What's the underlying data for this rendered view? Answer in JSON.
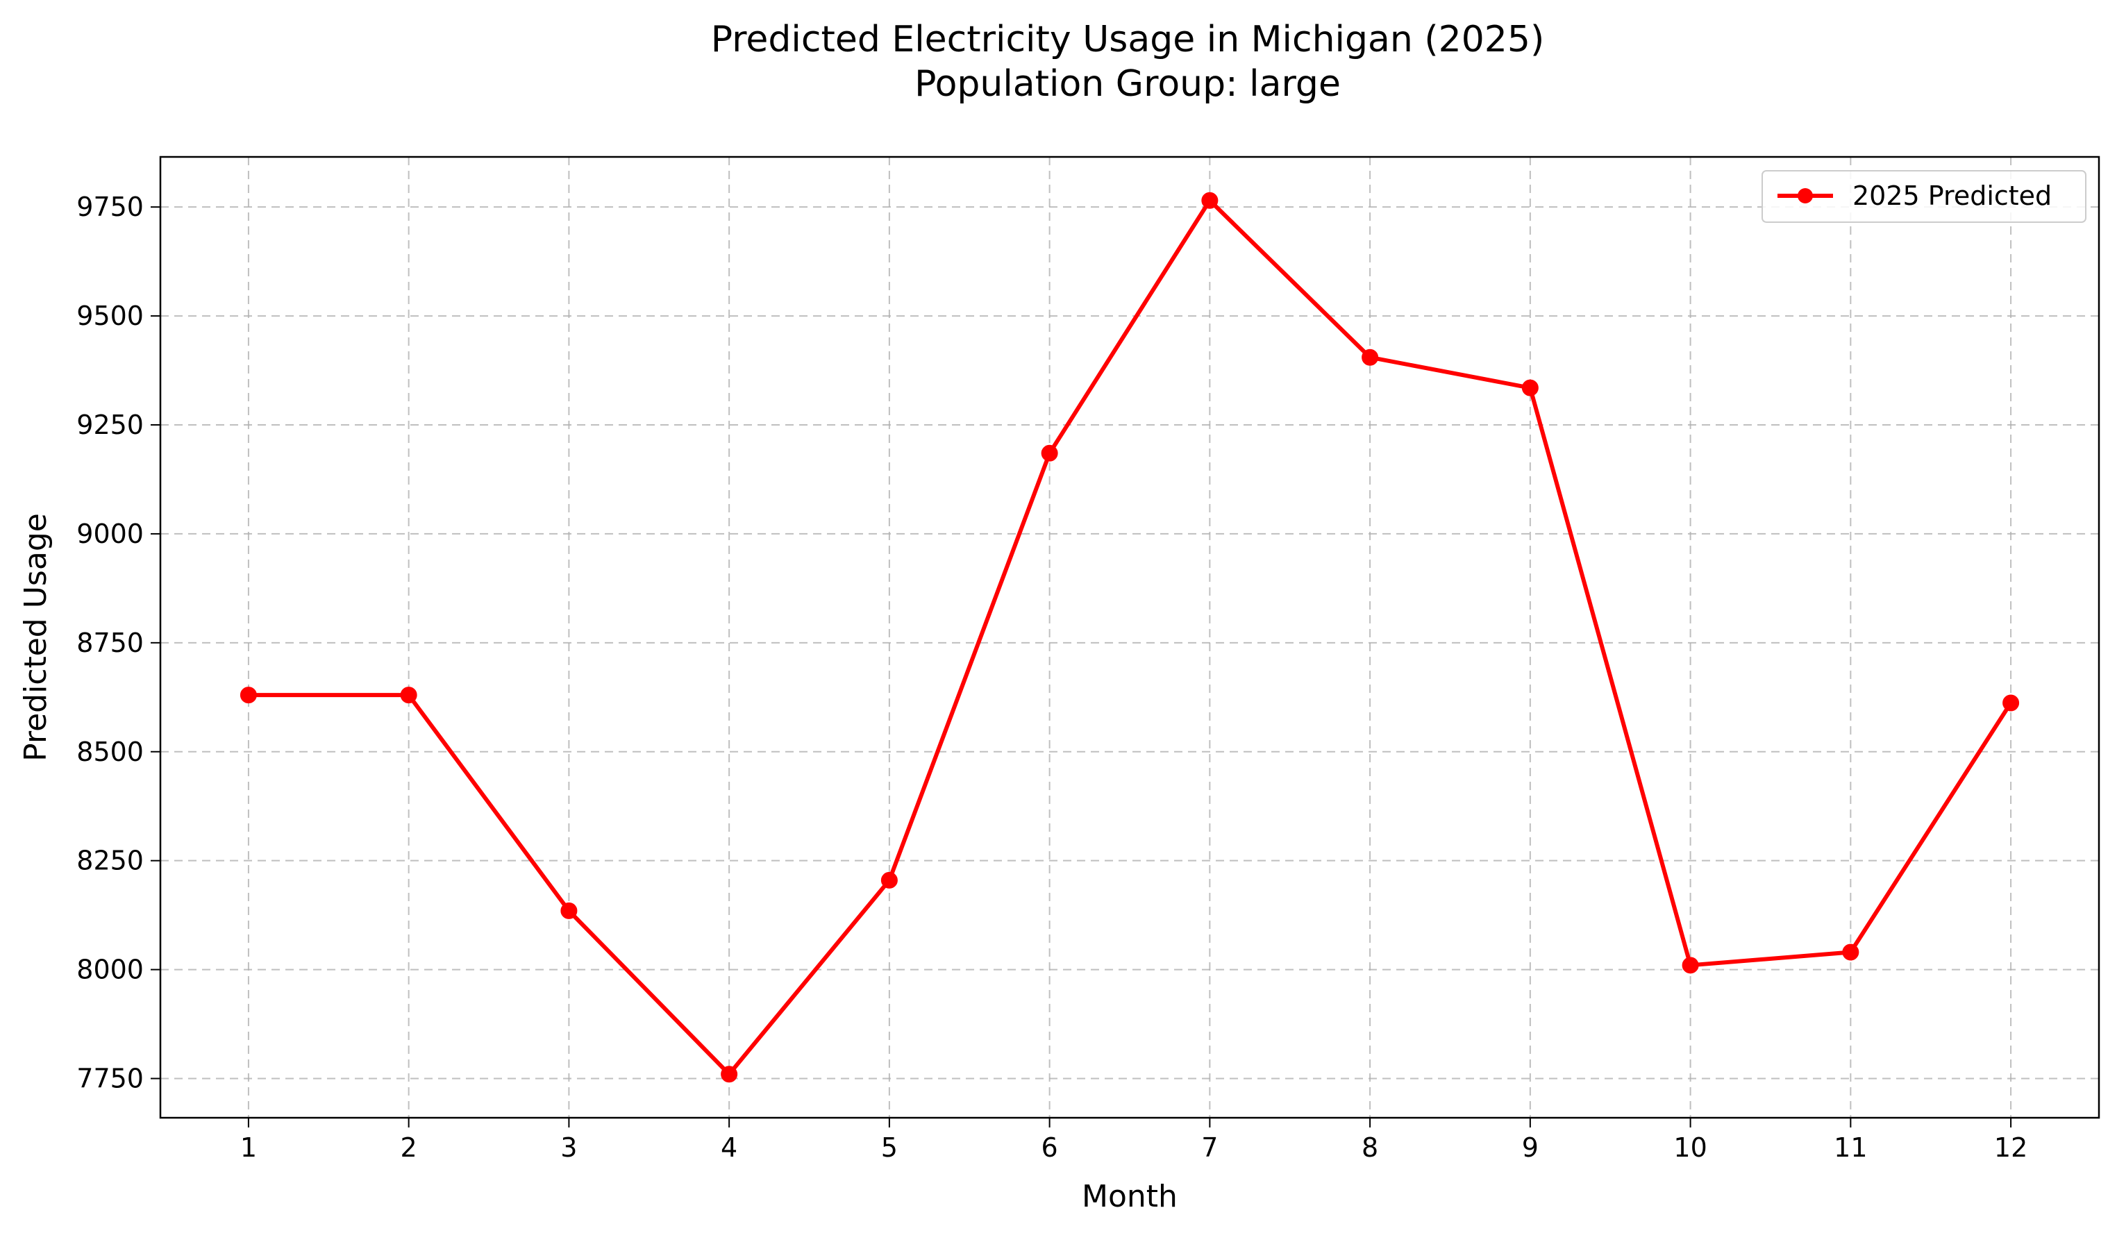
{
  "chart_data": {
    "type": "line",
    "title": "Predicted Electricity Usage in Michigan (2025)",
    "subtitle": "Population Group: large",
    "xlabel": "Month",
    "ylabel": "Predicted Usage",
    "x": [
      1,
      2,
      3,
      4,
      5,
      6,
      7,
      8,
      9,
      10,
      11,
      12
    ],
    "xticks": [
      "1",
      "2",
      "3",
      "4",
      "5",
      "6",
      "7",
      "8",
      "9",
      "10",
      "11",
      "12"
    ],
    "yticks": [
      7750,
      8000,
      8250,
      8500,
      8750,
      9000,
      9250,
      9500,
      9750
    ],
    "xlim": [
      0.45,
      12.55
    ],
    "ylim": [
      7660,
      9865
    ],
    "grid": true,
    "legend_position": "top-right",
    "series": [
      {
        "name": "2025 Predicted",
        "color": "#ff0000",
        "marker": "circle",
        "values": [
          8630,
          8630,
          8135,
          7760,
          8205,
          9185,
          9765,
          9405,
          9335,
          8010,
          8040,
          8612
        ]
      }
    ]
  }
}
